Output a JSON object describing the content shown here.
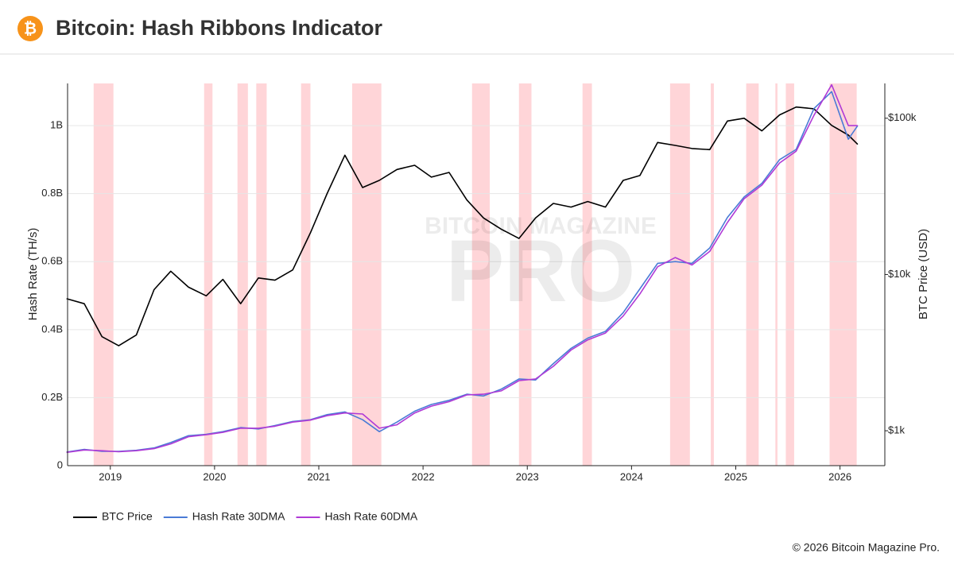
{
  "icon": "₿",
  "watermark": [
    "BITCOIN MAGAZINE",
    "PRO"
  ],
  "copyright": "© 2026 Bitcoin Magazine Pro.",
  "chart_data": {
    "type": "line",
    "title": "Bitcoin: Hash Ribbons Indicator",
    "ylabel": "Hash Rate (TH/s)",
    "y2label": "BTC Price (USD)",
    "xlim": [
      2018.59,
      2026.43
    ],
    "xticks": [
      2019,
      2020,
      2021,
      2022,
      2023,
      2024,
      2025,
      2026
    ],
    "ylim": [
      0,
      1124000000
    ],
    "yticks": [
      0,
      {
        "value": 200000000,
        "label": "0.2B"
      },
      {
        "value": 400000000,
        "label": "0.4B"
      },
      {
        "value": 600000000,
        "label": "0.6B"
      },
      {
        "value": 800000000,
        "label": "0.8B"
      },
      {
        "value": 1000000000,
        "label": "1B"
      }
    ],
    "y2lim": [
      598,
      167000
    ],
    "y2log": true,
    "y2ticks": [
      {
        "value": 1000,
        "label": "$1k"
      },
      {
        "value": 10000,
        "label": "$10k"
      },
      {
        "value": 100000,
        "label": "$100k"
      }
    ],
    "grid": true,
    "legend": "bottom-left",
    "x": [
      2018.58,
      2018.75,
      2018.92,
      2019.08,
      2019.25,
      2019.42,
      2019.58,
      2019.75,
      2019.92,
      2020.08,
      2020.25,
      2020.42,
      2020.58,
      2020.75,
      2020.92,
      2021.08,
      2021.25,
      2021.42,
      2021.58,
      2021.75,
      2021.92,
      2022.08,
      2022.25,
      2022.42,
      2022.58,
      2022.75,
      2022.92,
      2023.08,
      2023.25,
      2023.42,
      2023.58,
      2023.75,
      2023.92,
      2024.08,
      2024.25,
      2024.42,
      2024.58,
      2024.75,
      2024.92,
      2025.08,
      2025.25,
      2025.42,
      2025.58,
      2025.75,
      2025.92,
      2026.08,
      2026.17
    ],
    "series": [
      {
        "name": "BTC Price",
        "color": "#000000",
        "axis": "y2",
        "values": [
          7000,
          6500,
          4000,
          3500,
          4100,
          8000,
          10500,
          8300,
          7300,
          9300,
          6500,
          9500,
          9200,
          10700,
          18500,
          33000,
          58000,
          36000,
          40000,
          47000,
          50000,
          42000,
          45000,
          30000,
          23000,
          19500,
          17000,
          23000,
          28500,
          27000,
          29300,
          27000,
          40000,
          43000,
          70000,
          67000,
          64000,
          63000,
          96000,
          100000,
          83000,
          105000,
          118000,
          115000,
          90000,
          78000,
          68000
        ]
      },
      {
        "name": "Hash Rate 30DMA",
        "color": "#4a7bd6",
        "values": [
          40000000,
          48000000,
          42000000,
          42000000,
          45000000,
          52000000,
          68000000,
          88000000,
          92000000,
          100000000,
          112000000,
          108000000,
          118000000,
          130000000,
          135000000,
          150000000,
          158000000,
          135000000,
          100000000,
          128000000,
          160000000,
          180000000,
          192000000,
          210000000,
          205000000,
          225000000,
          255000000,
          252000000,
          300000000,
          345000000,
          375000000,
          395000000,
          450000000,
          520000000,
          595000000,
          600000000,
          595000000,
          640000000,
          730000000,
          790000000,
          830000000,
          900000000,
          930000000,
          1050000000,
          1100000000,
          960000000,
          1000000000
        ]
      },
      {
        "name": "Hash Rate 60DMA",
        "color": "#b03ad6",
        "values": [
          39000000,
          46000000,
          44000000,
          41000000,
          44000000,
          50000000,
          64000000,
          85000000,
          91000000,
          98000000,
          110000000,
          110000000,
          116000000,
          128000000,
          134000000,
          147000000,
          155000000,
          152000000,
          110000000,
          120000000,
          155000000,
          175000000,
          188000000,
          208000000,
          210000000,
          220000000,
          250000000,
          255000000,
          292000000,
          340000000,
          370000000,
          390000000,
          440000000,
          505000000,
          585000000,
          612000000,
          590000000,
          630000000,
          715000000,
          785000000,
          825000000,
          890000000,
          925000000,
          1030000000,
          1120000000,
          1000000000,
          1000000000
        ]
      }
    ],
    "bands": {
      "color": "#ffb3b8",
      "ranges": [
        [
          2018.84,
          2019.03
        ],
        [
          2019.9,
          2019.98
        ],
        [
          2020.22,
          2020.32
        ],
        [
          2020.4,
          2020.5
        ],
        [
          2020.83,
          2020.92
        ],
        [
          2021.32,
          2021.6
        ],
        [
          2022.47,
          2022.64
        ],
        [
          2022.92,
          2023.04
        ],
        [
          2023.53,
          2023.62
        ],
        [
          2024.37,
          2024.56
        ],
        [
          2024.76,
          2024.79
        ],
        [
          2025.1,
          2025.22
        ],
        [
          2025.38,
          2025.4
        ],
        [
          2025.48,
          2025.56
        ],
        [
          2025.9,
          2026.16
        ]
      ]
    }
  }
}
